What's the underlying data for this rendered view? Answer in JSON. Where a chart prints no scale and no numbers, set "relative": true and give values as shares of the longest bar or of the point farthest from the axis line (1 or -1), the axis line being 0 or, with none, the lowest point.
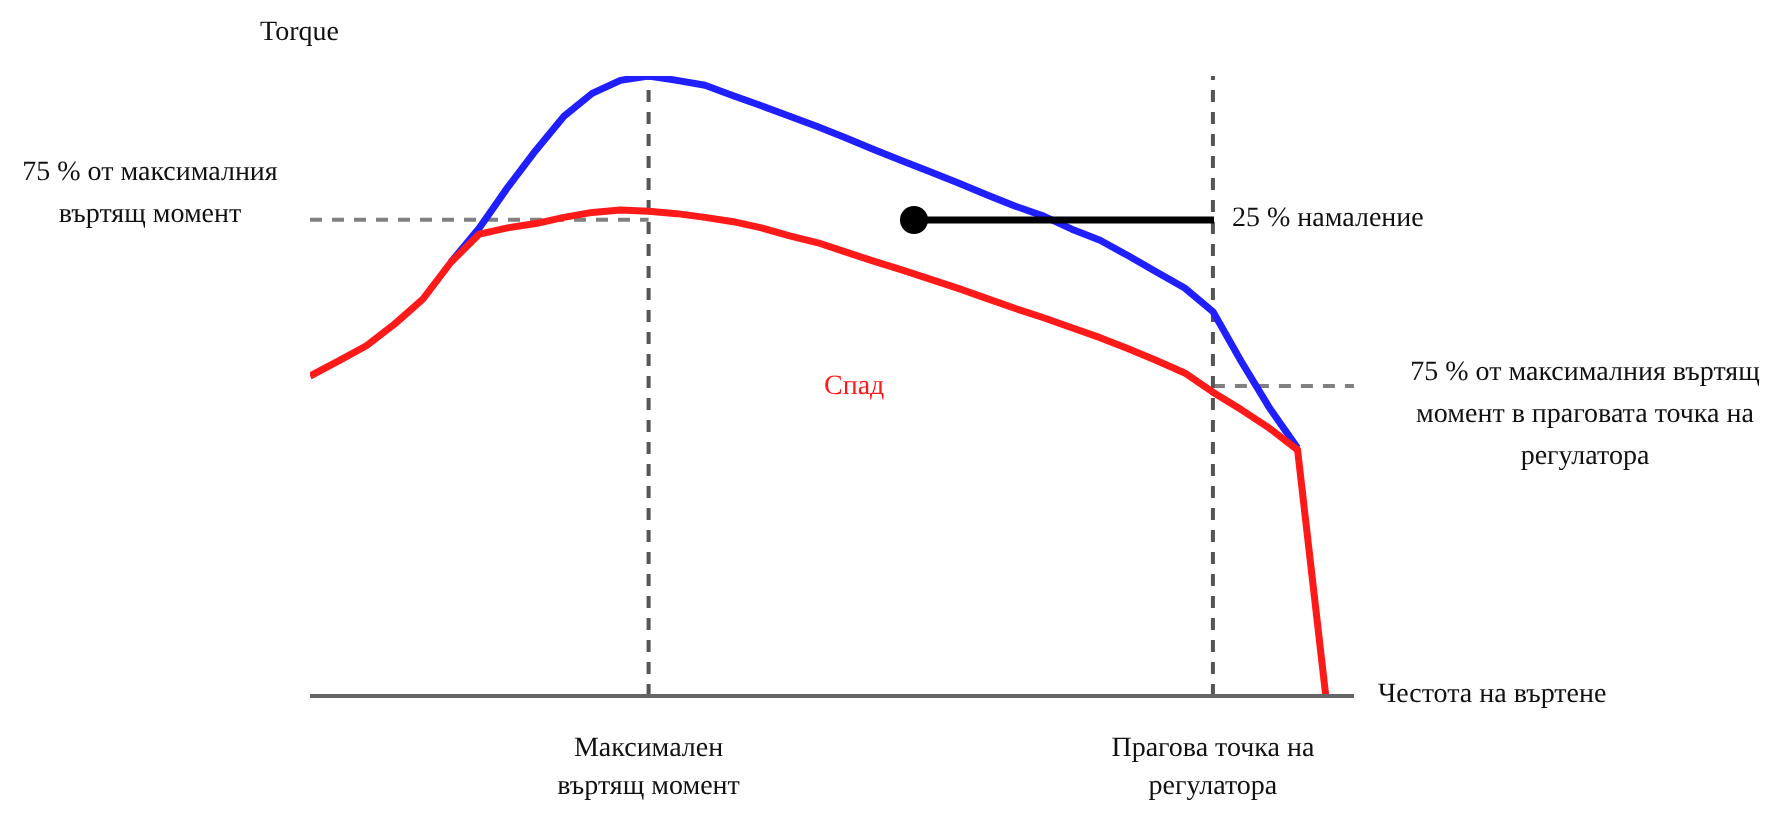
{
  "chart_data": {
    "type": "line",
    "relative": true,
    "ylabel": "Torque",
    "xlabel": "Честота на въртене",
    "categories": [
      null,
      null,
      null,
      null,
      null,
      null,
      null,
      null,
      null,
      null,
      null,
      null,
      "Максимален въртящ момент",
      null,
      null,
      null,
      null,
      null,
      null,
      null,
      null,
      null,
      null,
      null,
      null,
      null,
      null,
      null,
      null,
      null,
      null,
      null,
      "Прагова точка на регулатора",
      null,
      null,
      null,
      null,
      null
    ],
    "series": [
      {
        "color": "#1f1fff",
        "values": [
          null,
          null,
          null,
          null,
          null,
          0.7,
          0.755,
          0.82,
          0.88,
          0.935,
          0.972,
          0.993,
          1,
          0.993,
          0.985,
          0.968,
          0.952,
          0.935,
          0.918,
          0.9,
          0.881,
          0.863,
          0.845,
          0.827,
          0.808,
          0.79,
          0.774,
          0.753,
          0.735,
          0.71,
          0.684,
          0.658,
          0.62,
          0.54,
          0.465,
          0.4,
          null,
          null
        ]
      },
      {
        "color": "#ff1a1a",
        "values": [
          0.516,
          0.54,
          0.565,
          0.6,
          0.64,
          0.7,
          0.745,
          0.755,
          0.762,
          0.772,
          0.78,
          0.784,
          0.782,
          0.778,
          0.772,
          0.765,
          0.755,
          0.742,
          0.731,
          0.716,
          0.701,
          0.687,
          0.672,
          0.657,
          0.641,
          0.625,
          0.61,
          0.594,
          0.578,
          0.56,
          0.541,
          0.521,
          0.49,
          0.462,
          0.432,
          0.397,
          0,
          null
        ]
      }
    ],
    "ref_lines": [
      {
        "axis": "y",
        "value": 0.768,
        "label": "75 % от максималния въртящ момент",
        "color": "#808080",
        "line_style": "dashed"
      },
      {
        "axis": "y",
        "value": 0.5,
        "label": "75 % от максималния въртящ момент в праговата точка на регулатора",
        "color": "#808080",
        "line_style": "dashed"
      },
      {
        "axis": "x",
        "value": "Максимален въртящ момент",
        "color": "#555555",
        "line_style": "dashed"
      },
      {
        "axis": "x",
        "value": "Прагова точка на регулатора",
        "color": "#555555",
        "line_style": "dashed"
      }
    ],
    "annotations": [
      "25 % намаление",
      "Спад"
    ],
    "marker": "none",
    "line_style": "solid"
  }
}
